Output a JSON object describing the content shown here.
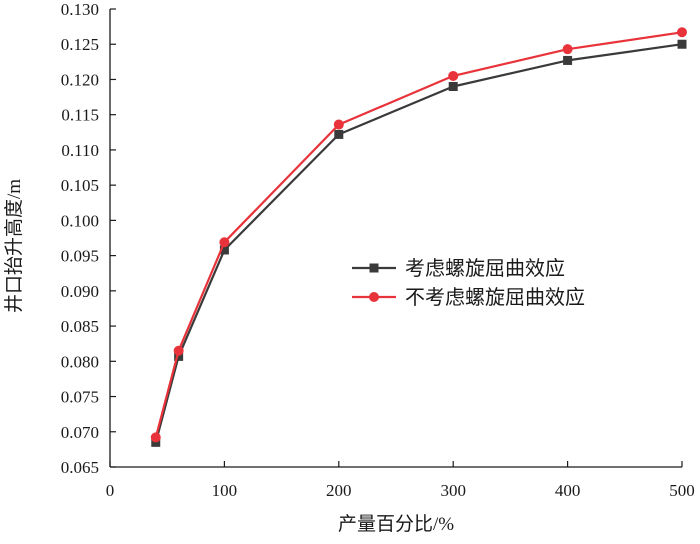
{
  "chart_data": {
    "type": "line",
    "title": "",
    "xlabel": "产量百分比/%",
    "ylabel": "井口抬升高度/m",
    "xlim": [
      0,
      500
    ],
    "ylim": [
      0.065,
      0.13
    ],
    "x_ticks": [
      "0",
      "100",
      "200",
      "300",
      "400",
      "500"
    ],
    "y_ticks": [
      "0.065",
      "0.070",
      "0.075",
      "0.080",
      "0.085",
      "0.090",
      "0.095",
      "0.100",
      "0.105",
      "0.110",
      "0.115",
      "0.120",
      "0.125",
      "0.130"
    ],
    "grid": false,
    "legend_position": "center-right",
    "series": [
      {
        "name": "考虑螺旋屈曲效应",
        "marker": "square",
        "color": "#3a3a3a",
        "x": [
          40,
          60,
          100,
          200,
          300,
          400,
          500
        ],
        "y": [
          0.0685,
          0.0807,
          0.0958,
          0.1122,
          0.119,
          0.1227,
          0.125
        ]
      },
      {
        "name": "不考虑螺旋屈曲效应",
        "marker": "circle",
        "color": "#e8333a",
        "x": [
          40,
          60,
          100,
          200,
          300,
          400,
          500
        ],
        "y": [
          0.0692,
          0.0815,
          0.0969,
          0.1136,
          0.1205,
          0.1243,
          0.1267
        ]
      }
    ]
  }
}
